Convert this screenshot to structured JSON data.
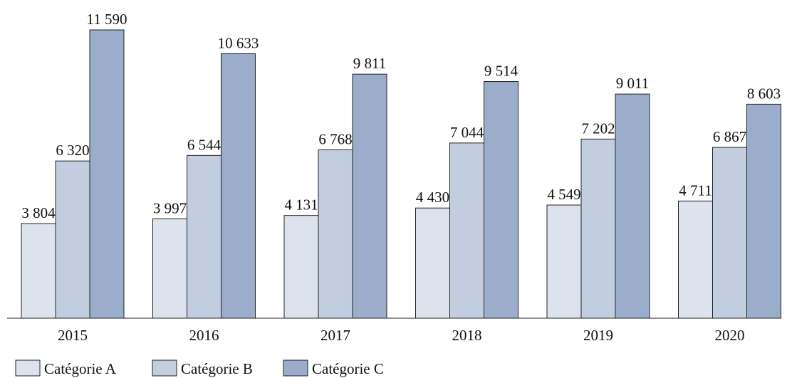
{
  "chart_data": {
    "type": "bar",
    "categories": [
      "2015",
      "2016",
      "2017",
      "2018",
      "2019",
      "2020"
    ],
    "series": [
      {
        "name": "Catégorie A",
        "color": "#dde3ec",
        "values": [
          3804,
          3997,
          4131,
          4430,
          4549,
          4711
        ],
        "value_labels": [
          "3 804",
          "3 997",
          "4 131",
          "4 430",
          "4 549",
          "4 711"
        ]
      },
      {
        "name": "Catégorie B",
        "color": "#c3cde0",
        "values": [
          6320,
          6544,
          6768,
          7044,
          7202,
          6867
        ],
        "value_labels": [
          "6 320",
          "6 544",
          "6 768",
          "7 044",
          "7 202",
          "6 867"
        ]
      },
      {
        "name": "Catégorie C",
        "color": "#9aaecb",
        "values": [
          11590,
          10633,
          9811,
          9514,
          9011,
          8603
        ],
        "value_labels": [
          "11 590",
          "10 633",
          "9 811",
          "9 514",
          "9 011",
          "8 603"
        ]
      }
    ]
  }
}
